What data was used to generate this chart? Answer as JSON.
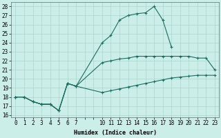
{
  "xlabel": "Humidex (Indice chaleur)",
  "bg_color": "#cceee8",
  "grid_color": "#aad4cc",
  "line_color": "#1a6b60",
  "xlim": [
    -0.5,
    23.5
  ],
  "ylim": [
    15.8,
    28.5
  ],
  "yticks": [
    16,
    17,
    18,
    19,
    20,
    21,
    22,
    23,
    24,
    25,
    26,
    27,
    28
  ],
  "xticks_all": [
    0,
    1,
    2,
    3,
    4,
    5,
    6,
    7,
    8,
    9,
    10,
    11,
    12,
    13,
    14,
    15,
    16,
    17,
    18,
    19,
    20,
    21,
    22,
    23
  ],
  "xtick_labels": [
    "0",
    "1",
    "2",
    "3",
    "4",
    "5",
    "6",
    "7",
    "",
    "",
    "10",
    "11",
    "12",
    "13",
    "14",
    "15",
    "16",
    "17",
    "18",
    "19",
    "20",
    "21",
    "22",
    "23"
  ],
  "line1_x": [
    0,
    1,
    2,
    3,
    4,
    5,
    6,
    7,
    10,
    11,
    12,
    13,
    14,
    15,
    16,
    17,
    18
  ],
  "line1_y": [
    18.0,
    18.0,
    17.5,
    17.2,
    17.2,
    16.5,
    19.5,
    19.2,
    24.0,
    24.8,
    26.5,
    27.0,
    27.2,
    27.3,
    28.0,
    26.5,
    23.5
  ],
  "line2_x": [
    0,
    1,
    2,
    3,
    4,
    5,
    6,
    7,
    10,
    11,
    12,
    13,
    14,
    15,
    16,
    17,
    18,
    19,
    20,
    21,
    22,
    23
  ],
  "line2_y": [
    18.0,
    18.0,
    17.5,
    17.2,
    17.2,
    16.5,
    19.5,
    19.2,
    21.8,
    22.0,
    22.2,
    22.3,
    22.5,
    22.5,
    22.5,
    22.5,
    22.5,
    22.5,
    22.5,
    22.3,
    22.3,
    21.0
  ],
  "line3_x": [
    0,
    1,
    2,
    3,
    4,
    5,
    6,
    7,
    10,
    11,
    12,
    13,
    14,
    15,
    16,
    17,
    18,
    19,
    20,
    21,
    22,
    23
  ],
  "line3_y": [
    18.0,
    18.0,
    17.5,
    17.2,
    17.2,
    16.5,
    19.5,
    19.2,
    18.5,
    18.7,
    18.9,
    19.1,
    19.3,
    19.5,
    19.7,
    19.9,
    20.1,
    20.2,
    20.3,
    20.4,
    20.4,
    20.4
  ]
}
